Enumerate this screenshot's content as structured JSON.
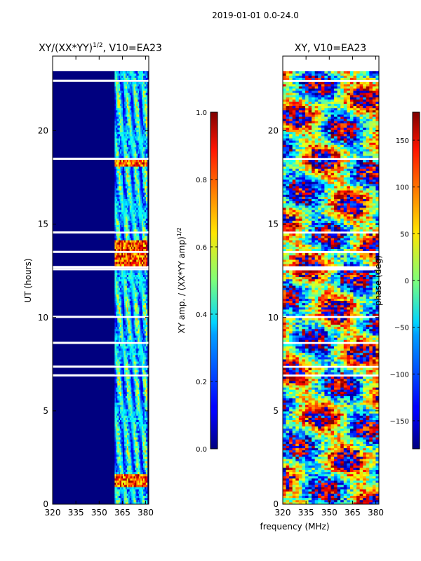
{
  "chart_data": {
    "suptitle": "2019-01-01 0.0-24.0",
    "xlabel": "frequency (MHz)",
    "panels": [
      {
        "type": "heatmap",
        "id": "amp",
        "title": "XY/(XX*YY)",
        "title_sup": "1/2",
        "title_suffix": ", V10=EA23",
        "ylabel": "UT (hours)",
        "xlim": [
          320,
          382
        ],
        "ylim": [
          0,
          24
        ],
        "xticks": [
          320,
          335,
          350,
          365,
          380
        ],
        "yticks": [
          0,
          5,
          10,
          15,
          20
        ],
        "colorbar": {
          "label": "XY amp. / (XX*YY amp)",
          "label_sup": "1/2",
          "range": [
            0.0,
            1.0
          ],
          "ticks": [
            "0.0",
            "0.2",
            "0.4",
            "0.6",
            "0.8",
            "1.0"
          ],
          "tick_values": [
            0.0,
            0.2,
            0.4,
            0.6,
            0.8,
            1.0
          ]
        }
      },
      {
        "type": "heatmap",
        "id": "phase",
        "title": "XY, V10=EA23",
        "ylabel": "",
        "xlim": [
          320,
          382
        ],
        "ylim": [
          0,
          24
        ],
        "xticks": [
          320,
          335,
          350,
          365,
          380
        ],
        "yticks": [
          0,
          5,
          10,
          15,
          20
        ],
        "colorbar": {
          "label": "phase (deg)",
          "range": [
            -180,
            180
          ],
          "ticks": [
            "150",
            "100",
            "50",
            "0",
            "−50",
            "−100",
            "−150"
          ],
          "tick_values": [
            150,
            100,
            50,
            0,
            -50,
            -100,
            -150
          ]
        }
      }
    ],
    "data_extent_hours": [
      0.0,
      23.2
    ],
    "bright_band_mhz": [
      360,
      381
    ],
    "flagged_gap_hours": [
      12.5,
      12.8
    ]
  }
}
